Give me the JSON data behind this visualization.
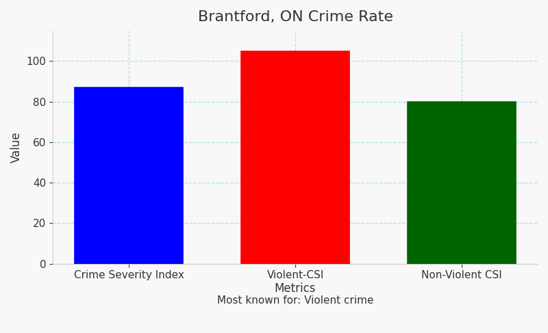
{
  "title": "Brantford, ON Crime Rate",
  "categories": [
    "Crime Severity Index",
    "Violent-CSI",
    "Non-Violent CSI"
  ],
  "values": [
    87,
    105,
    80
  ],
  "bar_colors": [
    "#0000ff",
    "#ff0000",
    "#006400"
  ],
  "bar_edge_colors": [
    "#0000ff",
    "#ff0000",
    "#006400"
  ],
  "xlabel": "Metrics",
  "xlabel2": "Most known for: Violent crime",
  "ylabel": "Value",
  "ylim": [
    0,
    115
  ],
  "yticks": [
    0,
    20,
    40,
    60,
    80,
    100
  ],
  "title_fontsize": 16,
  "label_fontsize": 12,
  "subtitle_fontsize": 11,
  "tick_fontsize": 11,
  "background_color": "#f8f8f8",
  "grid_color": "#b0e0e0",
  "bar_width": 0.65
}
